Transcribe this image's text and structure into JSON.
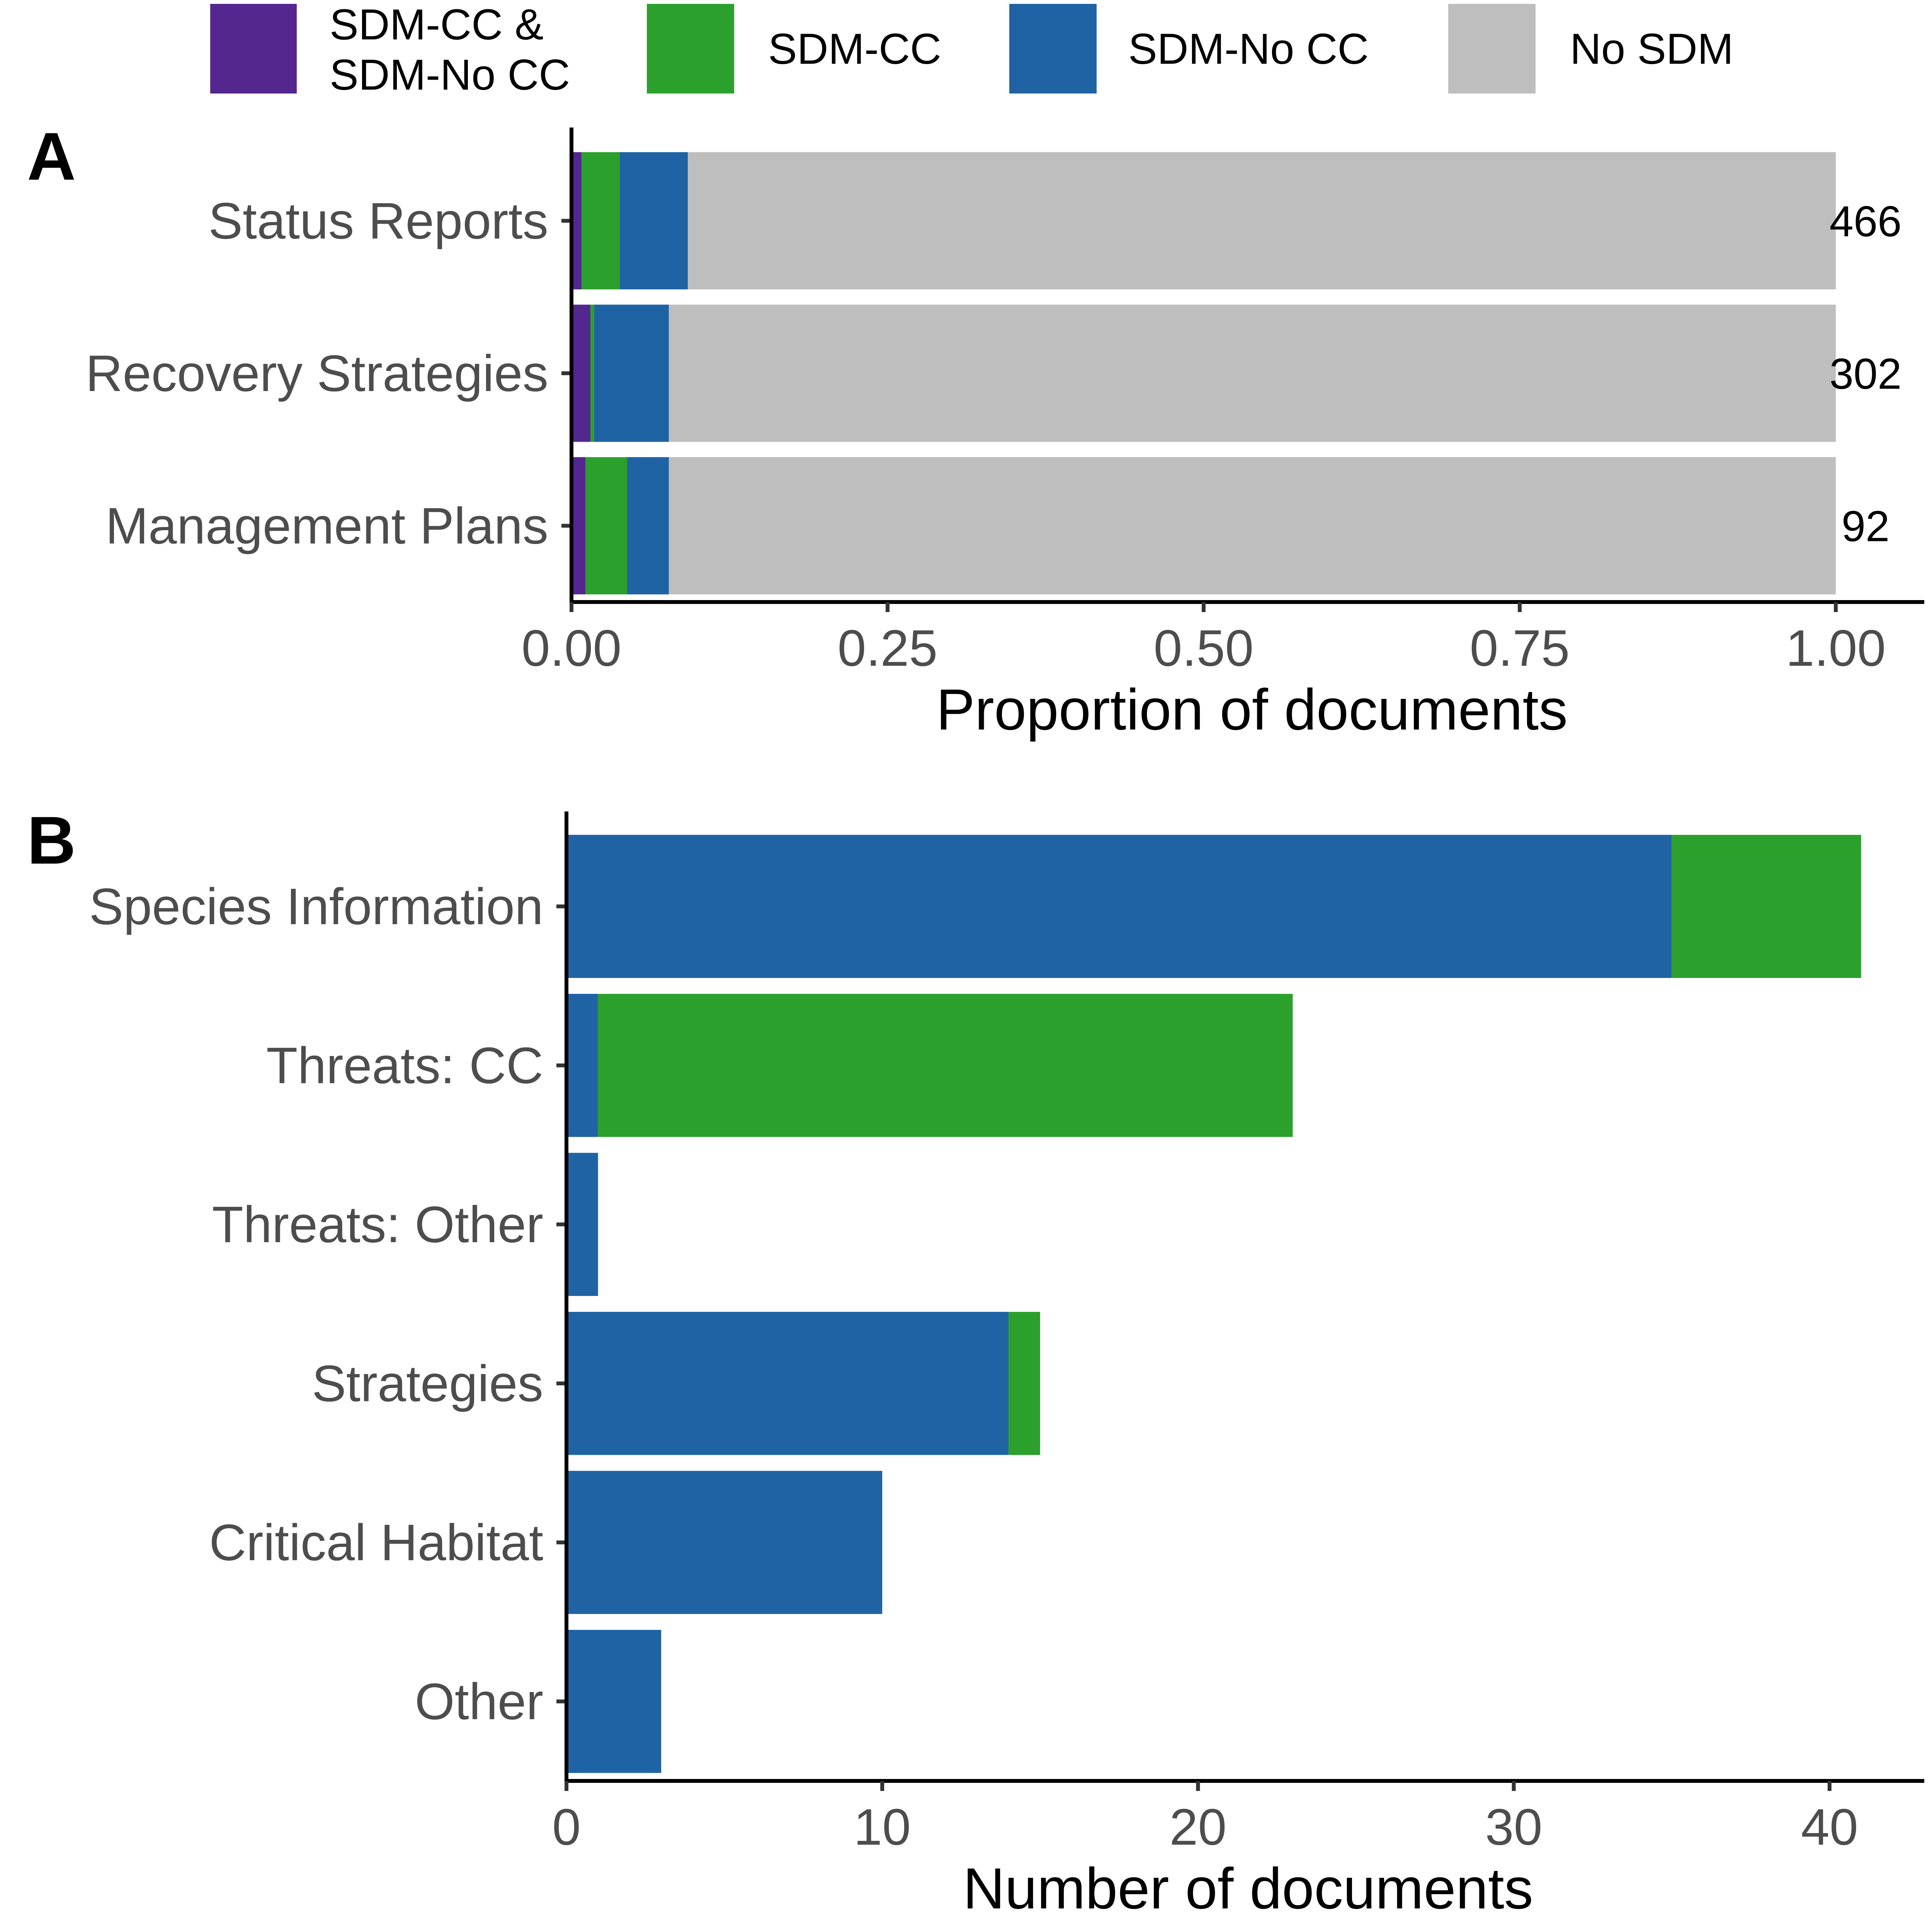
{
  "legend": {
    "items": [
      {
        "label_line1": "SDM-CC &",
        "label_line2": "SDM-No CC",
        "color": "#54278f"
      },
      {
        "label_line1": "SDM-CC",
        "label_line2": "",
        "color": "#2ca02c"
      },
      {
        "label_line1": "SDM-No CC",
        "label_line2": "",
        "color": "#1f63a4"
      },
      {
        "label_line1": "No SDM",
        "label_line2": "",
        "color": "#bebebe"
      }
    ],
    "placement": "top"
  },
  "chart_data": [
    {
      "panel": "A",
      "type": "bar",
      "orientation": "horizontal",
      "stacked": true,
      "categories": [
        "Status Reports",
        "Recovery Strategies",
        "Management Plans"
      ],
      "series": [
        {
          "name": "SDM-CC & SDM-No CC",
          "color": "#54278f",
          "values": [
            0.008,
            0.015,
            0.011
          ]
        },
        {
          "name": "SDM-CC",
          "color": "#2ca02c",
          "values": [
            0.03,
            0.003,
            0.033
          ]
        },
        {
          "name": "SDM-No CC",
          "color": "#1f63a4",
          "values": [
            0.054,
            0.059,
            0.033
          ]
        },
        {
          "name": "No SDM",
          "color": "#bebebe",
          "values": [
            0.908,
            0.923,
            0.923
          ]
        }
      ],
      "counts": [
        "466",
        "302",
        "92"
      ],
      "xlabel": "Proportion of documents",
      "xlim": [
        0,
        1.07
      ],
      "xticks": [
        0,
        0.25,
        0.5,
        0.75,
        1.0
      ],
      "xtick_labels": [
        "0.00",
        "0.25",
        "0.50",
        "0.75",
        "1.00"
      ],
      "grid": false
    },
    {
      "panel": "B",
      "type": "bar",
      "orientation": "horizontal",
      "stacked": true,
      "categories": [
        "Species Information",
        "Threats: CC",
        "Threats: Other",
        "Strategies",
        "Critical Habitat",
        "Other"
      ],
      "series": [
        {
          "name": "SDM-No CC",
          "color": "#1f63a4",
          "values": [
            35,
            1,
            1,
            14,
            10,
            3
          ]
        },
        {
          "name": "SDM-CC",
          "color": "#2ca02c",
          "values": [
            6,
            22,
            0,
            1,
            0,
            0
          ]
        }
      ],
      "xlabel": "Number of documents",
      "xlim": [
        0,
        43
      ],
      "xticks": [
        0,
        10,
        20,
        30,
        40
      ],
      "xtick_labels": [
        "0",
        "10",
        "20",
        "30",
        "40"
      ],
      "grid": false
    }
  ]
}
